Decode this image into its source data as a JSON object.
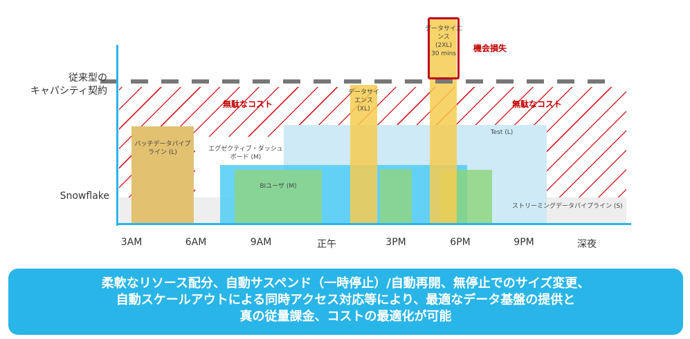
{
  "left_labels": {
    "capacity_line1": "従来型の",
    "capacity_line2": "キャパシティ契約",
    "snowflake": "Snowflake"
  },
  "workloads": {
    "batch": "バッチデータパイプライン (L)",
    "exec_dashboard": "エグゼクティブ・ダッシュボード (M)",
    "bi_user": "BIユーザ (M)",
    "ds_xl": "データサイエンス (XL)",
    "ds_2xl_1": "データサイエンス",
    "ds_2xl_2": "(2XL)",
    "ds_2xl_3": "30 mins",
    "test": "Test (L)",
    "streaming": "ストリーミングデータパイプライン (S)"
  },
  "annotations": {
    "waste_left": "無駄なコスト",
    "waste_right": "無駄なコスト",
    "opportunity_loss": "機会損失"
  },
  "x_axis": [
    "3AM",
    "6AM",
    "9AM",
    "正午",
    "3PM",
    "6PM",
    "9PM",
    "深夜"
  ],
  "banner": {
    "line1": "柔軟なリソース配分、自動サスペンド（一時停止）/自動再開、無停止でのサイズ変更、",
    "line2": "自動スケールアウトによる同時アクセス対応等により、最適なデータ基盤の提供と",
    "line3": "真の従量課金、コストの最適化が可能"
  },
  "colors": {
    "axis": "#29b5e8",
    "waste": "#c00000",
    "banner": "#29b5e8"
  }
}
